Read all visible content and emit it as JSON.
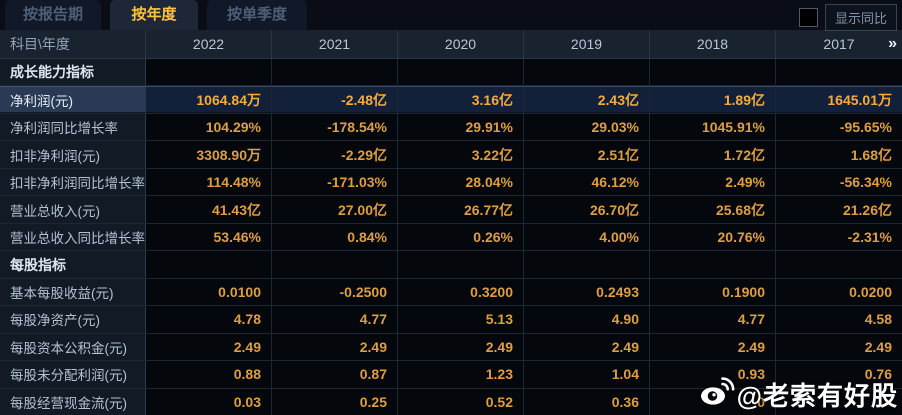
{
  "tabs": [
    {
      "label": "按报告期",
      "active": false
    },
    {
      "label": "按年度",
      "active": true
    },
    {
      "label": "按单季度",
      "active": false
    }
  ],
  "controls": {
    "show_yoy_label": "显示同比",
    "checkbox_checked": false
  },
  "table": {
    "corner_label": "科目\\年度",
    "years": [
      "2022",
      "2021",
      "2020",
      "2019",
      "2018",
      "2017"
    ],
    "more_label": "»",
    "sections": [
      {
        "title": "成长能力指标",
        "rows": [
          {
            "label": "净利润(元)",
            "highlight": true,
            "values": [
              "1064.84万",
              "-2.48亿",
              "3.16亿",
              "2.43亿",
              "1.89亿",
              "1645.01万"
            ]
          },
          {
            "label": "净利润同比增长率",
            "values": [
              "104.29%",
              "-178.54%",
              "29.91%",
              "29.03%",
              "1045.91%",
              "-95.65%"
            ]
          },
          {
            "label": "扣非净利润(元)",
            "values": [
              "3308.90万",
              "-2.29亿",
              "3.22亿",
              "2.51亿",
              "1.72亿",
              "1.68亿"
            ]
          },
          {
            "label": "扣非净利润同比增长率",
            "values": [
              "114.48%",
              "-171.03%",
              "28.04%",
              "46.12%",
              "2.49%",
              "-56.34%"
            ]
          },
          {
            "label": "营业总收入(元)",
            "values": [
              "41.43亿",
              "27.00亿",
              "26.77亿",
              "26.70亿",
              "25.68亿",
              "21.26亿"
            ]
          },
          {
            "label": "营业总收入同比增长率",
            "values": [
              "53.46%",
              "0.84%",
              "0.26%",
              "4.00%",
              "20.76%",
              "-2.31%"
            ]
          }
        ]
      },
      {
        "title": "每股指标",
        "rows": [
          {
            "label": "基本每股收益(元)",
            "values": [
              "0.0100",
              "-0.2500",
              "0.3200",
              "0.2493",
              "0.1900",
              "0.0200"
            ]
          },
          {
            "label": "每股净资产(元)",
            "values": [
              "4.78",
              "4.77",
              "5.13",
              "4.90",
              "4.77",
              "4.58"
            ]
          },
          {
            "label": "每股资本公积金(元)",
            "values": [
              "2.49",
              "2.49",
              "2.49",
              "2.49",
              "2.49",
              "2.49"
            ]
          },
          {
            "label": "每股未分配利润(元)",
            "values": [
              "0.88",
              "0.87",
              "1.23",
              "1.04",
              "0.93",
              "0.76"
            ]
          },
          {
            "label": "每股经营现金流(元)",
            "values": [
              "0.03",
              "0.25",
              "0.52",
              "0.36",
              "0",
              ""
            ]
          }
        ]
      }
    ]
  },
  "watermark": {
    "handle": "@老索有好股",
    "icon": "weibo-icon"
  },
  "colors": {
    "value_text": "#de9e42",
    "highlight_value_text": "#f5ac3b",
    "active_tab_text": "#ffc33c",
    "header_bg": "#19222f",
    "label_cell_bg": "#121a26",
    "highlight_row_bg": "#13203a",
    "page_bg": "#05080e"
  }
}
